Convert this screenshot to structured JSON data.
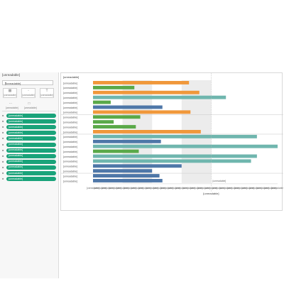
{
  "panel": {
    "title": "[unreadable]",
    "dropdown_value": "[unreadable]",
    "buttons": [
      "[unreadable]",
      "[unreadable]",
      "[unreadable]"
    ],
    "small_buttons": [
      "[unreadable]",
      "[unreadable]"
    ],
    "fields": [
      "[unreadable]",
      "[unreadable]",
      "[unreadable]",
      "[unreadable]",
      "[unreadable]",
      "[unreadable]",
      "[unreadable]",
      "[unreadable]",
      "[unreadable]",
      "[unreadable]",
      "[unreadable]",
      "[unreadable]"
    ]
  },
  "chart_data": {
    "type": "bar",
    "orientation": "horizontal",
    "column_header": "[unreadable]",
    "categories": [
      "[unreadable]",
      "[unreadable]",
      "[unreadable]",
      "[unreadable]",
      "[unreadable]",
      "[unreadable]",
      "[unreadable]",
      "[unreadable]",
      "[unreadable]",
      "[unreadable]",
      "[unreadable]",
      "[unreadable]",
      "[unreadable]",
      "[unreadable]",
      "[unreadable]",
      "[unreadable]",
      "[unreadable]",
      "[unreadable]",
      "[unreadable]",
      "[unreadable]",
      "[unreadable]"
    ],
    "values": [
      65,
      28,
      72,
      90,
      12,
      47,
      66,
      32,
      14,
      29,
      73,
      111,
      46,
      125,
      31,
      111,
      107,
      60,
      40,
      45,
      47
    ],
    "colors": [
      "#f0983b",
      "#5aa949",
      "#f0983b",
      "#6fb6ae",
      "#5aa949",
      "#4e77a8",
      "#f0983b",
      "#5aa949",
      "#5aa949",
      "#5aa949",
      "#f0983b",
      "#6fb6ae",
      "#4e77a8",
      "#6fb6ae",
      "#5aa949",
      "#6fb6ae",
      "#6fb6ae",
      "#4e77a8",
      "#4e77a8",
      "#4e77a8",
      "#4e77a8"
    ],
    "group_separators_after": [
      6,
      10,
      18
    ],
    "bands": [
      [
        20,
        40
      ],
      [
        60,
        80
      ]
    ],
    "reference_line": 80,
    "reference_label": "[unreadable]",
    "xlim": [
      0,
      125
    ],
    "xticks": [
      0,
      5,
      10,
      15,
      20,
      25,
      30,
      35,
      40,
      45,
      50,
      55,
      60,
      65,
      70,
      75,
      80,
      85,
      90,
      95,
      100,
      105,
      110,
      115,
      120,
      125
    ],
    "xtick_labels": [
      "[unreadable]",
      "[unreadable]",
      "[unreadable]",
      "[unreadable]",
      "[unreadable]",
      "[unreadable]",
      "[unreadable]",
      "[unreadable]",
      "[unreadable]",
      "[unreadable]",
      "[unreadable]",
      "[unreadable]",
      "[unreadable]",
      "[unreadable]",
      "[unreadable]",
      "[unreadable]",
      "[unreadable]",
      "[unreadable]",
      "[unreadable]",
      "[unreadable]",
      "[unreadable]",
      "[unreadable]",
      "[unreadable]",
      "[unreadable]",
      "[unreadable]",
      "[unreadable]"
    ],
    "xlabel": "[unreadable]",
    "grid": false
  }
}
